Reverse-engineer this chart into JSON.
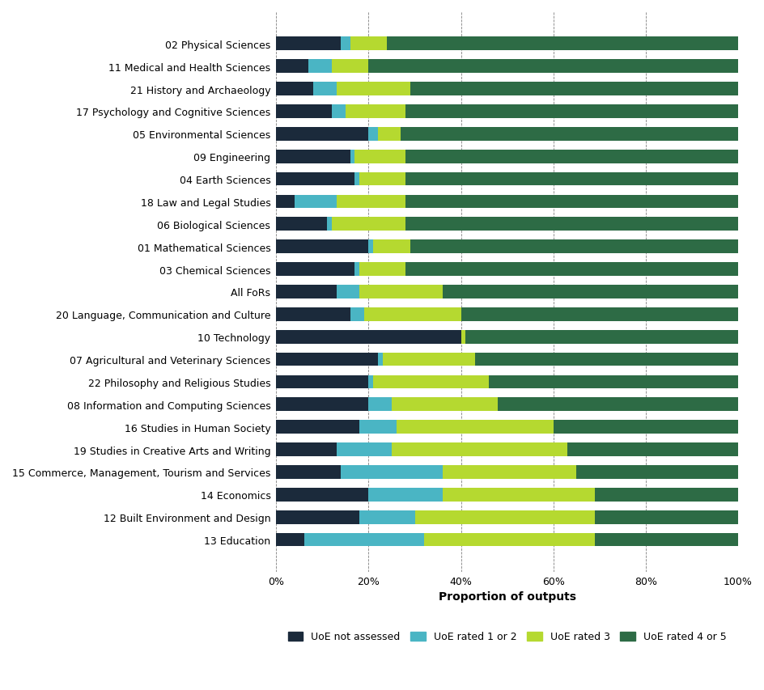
{
  "categories": [
    "13 Education",
    "12 Built Environment and Design",
    "14 Economics",
    "15 Commerce, Management, Tourism and Services",
    "19 Studies in Creative Arts and Writing",
    "16 Studies in Human Society",
    "08 Information and Computing Sciences",
    "22 Philosophy and Religious Studies",
    "07 Agricultural and Veterinary Sciences",
    "10 Technology",
    "20 Language, Communication and Culture",
    "All FoRs",
    "03 Chemical Sciences",
    "01 Mathematical Sciences",
    "06 Biological Sciences",
    "18 Law and Legal Studies",
    "04 Earth Sciences",
    "09 Engineering",
    "05 Environmental Sciences",
    "17 Psychology and Cognitive Sciences",
    "21 History and Archaeology",
    "11 Medical and Health Sciences",
    "02 Physical Sciences"
  ],
  "not_assessed_pct": [
    6,
    18,
    20,
    14,
    13,
    18,
    20,
    20,
    22,
    40,
    16,
    13,
    17,
    20,
    11,
    4,
    17,
    16,
    20,
    12,
    8,
    7,
    14
  ],
  "rated_12_pct": [
    26,
    12,
    16,
    22,
    12,
    8,
    5,
    1,
    1,
    0,
    3,
    5,
    1,
    1,
    1,
    9,
    1,
    1,
    2,
    3,
    5,
    5,
    2
  ],
  "rated_3_pct": [
    37,
    39,
    33,
    29,
    38,
    34,
    23,
    25,
    20,
    1,
    21,
    18,
    10,
    8,
    16,
    15,
    10,
    11,
    5,
    13,
    16,
    8,
    8
  ],
  "rated_45_pct": [
    31,
    31,
    31,
    35,
    37,
    40,
    52,
    54,
    57,
    59,
    60,
    64,
    72,
    71,
    72,
    72,
    72,
    72,
    73,
    72,
    71,
    80,
    76
  ],
  "colors": {
    "not_assessed": "#1b2a3b",
    "rated_1_or_2": "#4ab5c4",
    "rated_3": "#b5d930",
    "rated_4_or_5": "#2d6b45"
  },
  "legend_labels": [
    "UoE not assessed",
    "UoE rated 1 or 2",
    "UoE rated 3",
    "UoE rated 4 or 5"
  ],
  "xlabel": "Proportion of outputs",
  "background_color": "#ffffff",
  "bar_height": 0.6,
  "figsize": [
    9.45,
    8.54
  ],
  "dpi": 100
}
